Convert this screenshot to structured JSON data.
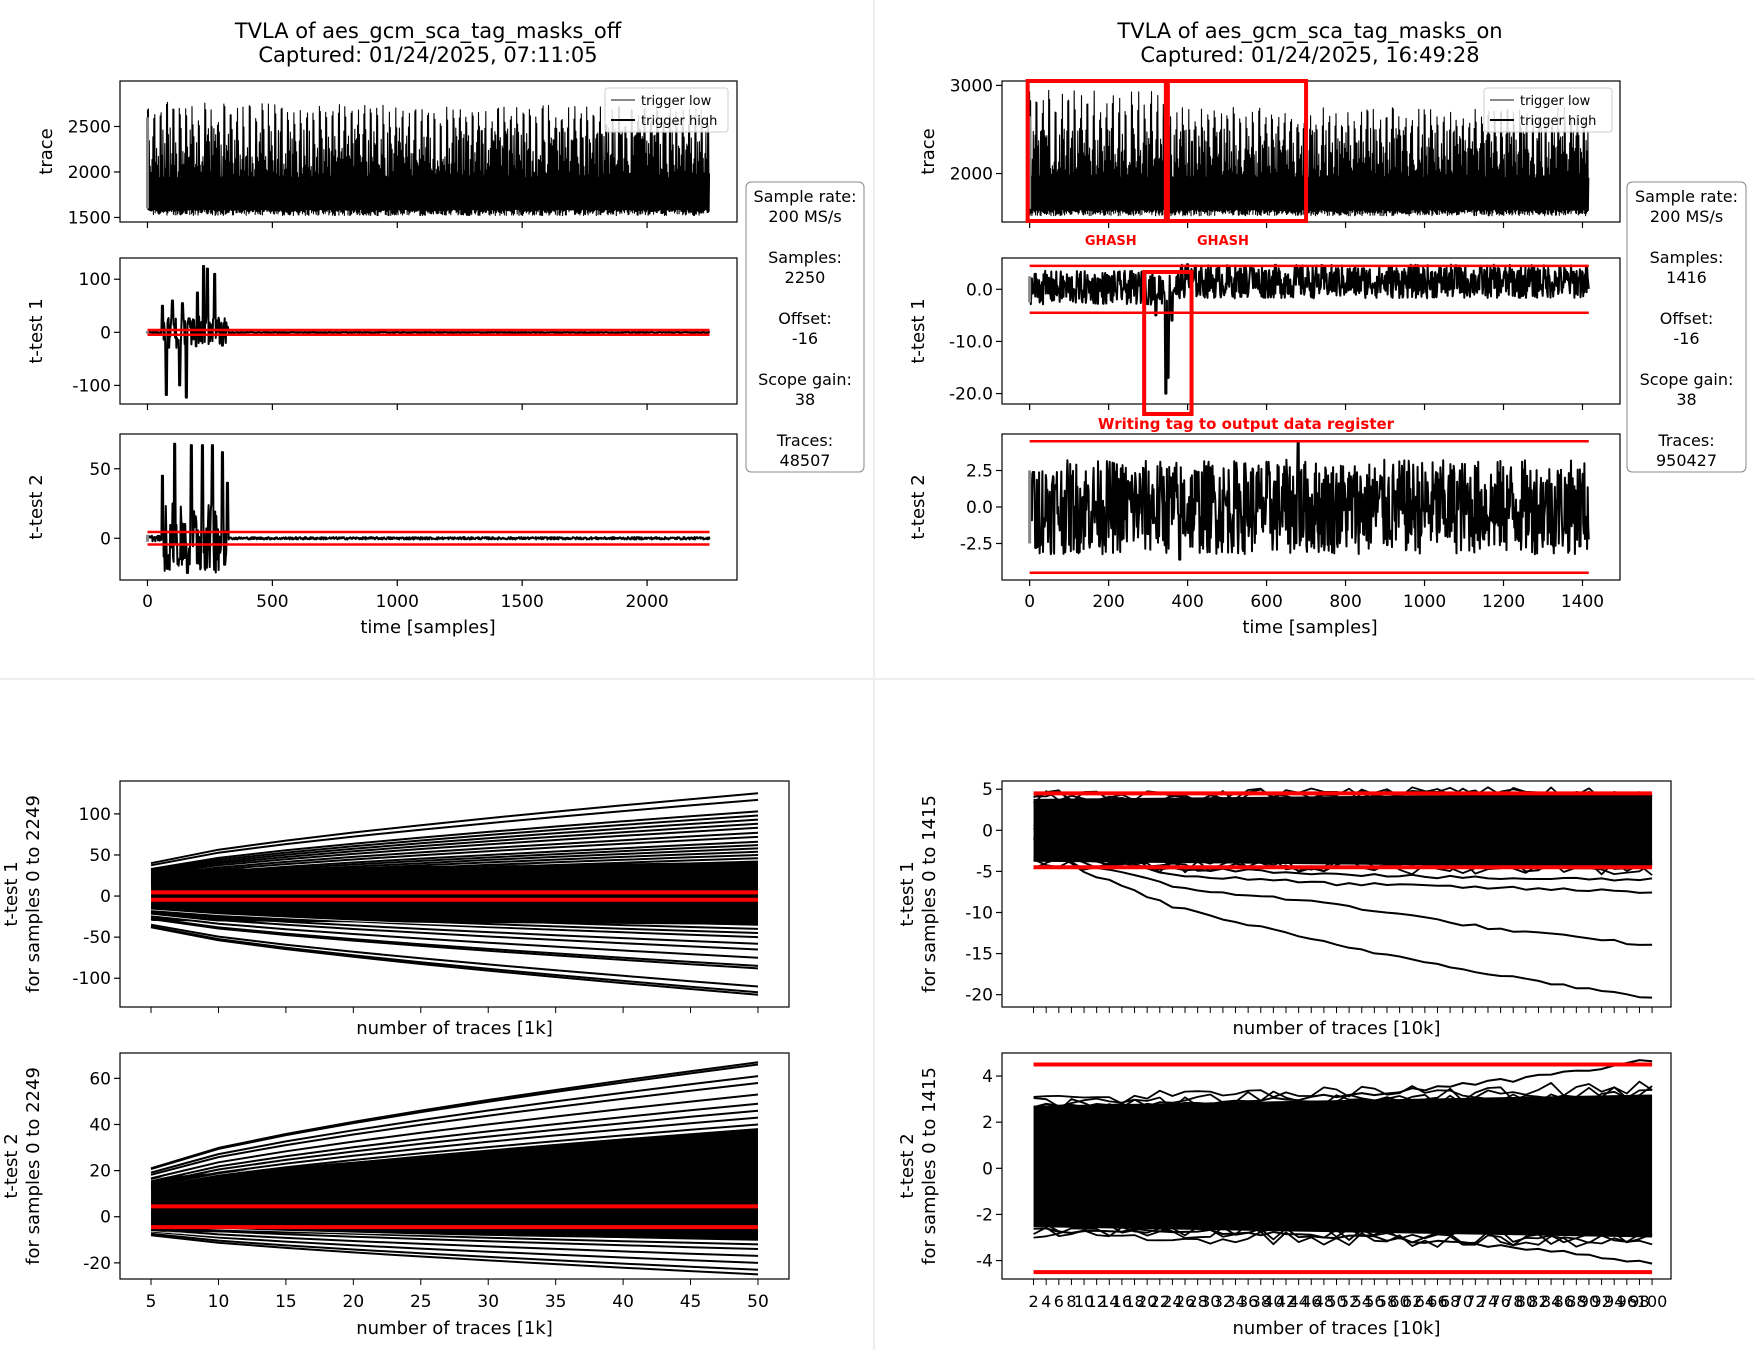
{
  "chart_data": [
    {
      "type": "line",
      "title": "TVLA of aes_gcm_sca_tag_masks_off",
      "subtitle": "Captured: 01/24/2025, 07:11:05",
      "xlabel": "time [samples]",
      "xlim": [
        -110,
        2360
      ],
      "xticks": [
        0,
        500,
        1000,
        1500,
        2000
      ],
      "legend": {
        "placement": "top-right",
        "entries": [
          "trigger low",
          "trigger high"
        ]
      },
      "info_box": [
        {
          "label": "Sample rate:",
          "value": "200 MS/s"
        },
        {
          "label": "Samples:",
          "value": "2250"
        },
        {
          "label": "Offset:",
          "value": "-16"
        },
        {
          "label": "Scope gain:",
          "value": "38"
        },
        {
          "label": "Traces:",
          "value": "48507"
        }
      ],
      "panels": [
        {
          "ylabel": "trace",
          "ylim": [
            1450,
            3000
          ],
          "yticks": [
            1500,
            2000,
            2500
          ],
          "series": [
            {
              "name": "trace",
              "n_samples": 2250,
              "range": [
                1520,
                2900
              ]
            }
          ]
        },
        {
          "ylabel": "t-test 1",
          "ylim": [
            -135,
            140
          ],
          "yticks": [
            -100,
            0,
            100
          ],
          "thresholds": [
            -4.5,
            4.5
          ],
          "peaks": [
            [
              60,
              50
            ],
            [
              75,
              -118
            ],
            [
              100,
              60
            ],
            [
              130,
              -100
            ],
            [
              140,
              55
            ],
            [
              155,
              -123
            ],
            [
              200,
              75
            ],
            [
              225,
              125
            ],
            [
              240,
              120
            ],
            [
              270,
              110
            ],
            [
              300,
              -25
            ],
            [
              320,
              10
            ]
          ]
        },
        {
          "ylabel": "t-test 2",
          "ylim": [
            -30,
            75
          ],
          "yticks": [
            0,
            50
          ],
          "thresholds": [
            -4.5,
            4.5
          ],
          "peaks": [
            [
              60,
              45
            ],
            [
              80,
              -22
            ],
            [
              110,
              68
            ],
            [
              130,
              -15
            ],
            [
              160,
              -25
            ],
            [
              175,
              67
            ],
            [
              220,
              67
            ],
            [
              260,
              67
            ],
            [
              300,
              62
            ],
            [
              320,
              40
            ]
          ]
        }
      ]
    },
    {
      "type": "line",
      "title": "TVLA of aes_gcm_sca_tag_masks_on",
      "subtitle": "Captured: 01/24/2025, 16:49:28",
      "xlabel": "time [samples]",
      "xlim": [
        -70,
        1495
      ],
      "xticks": [
        0,
        200,
        400,
        600,
        800,
        1000,
        1200,
        1400
      ],
      "legend": {
        "placement": "top-right",
        "entries": [
          "trigger low",
          "trigger high"
        ]
      },
      "info_box": [
        {
          "label": "Sample rate:",
          "value": "200 MS/s"
        },
        {
          "label": "Samples:",
          "value": "1416"
        },
        {
          "label": "Offset:",
          "value": "-16"
        },
        {
          "label": "Scope gain:",
          "value": "38"
        },
        {
          "label": "Traces:",
          "value": "950427"
        }
      ],
      "annotations": [
        {
          "text": "GHASH",
          "x_range": [
            0,
            350
          ]
        },
        {
          "text": "GHASH",
          "x_range": [
            350,
            700
          ]
        },
        {
          "text": "Writing tag to output data register",
          "x_range": [
            290,
            410
          ]
        }
      ],
      "panels": [
        {
          "ylabel": "trace",
          "ylim": [
            1450,
            3050
          ],
          "yticks": [
            2000,
            3000
          ],
          "series": [
            {
              "name": "trace",
              "n_samples": 1416,
              "range": [
                1520,
                2950
              ]
            }
          ]
        },
        {
          "ylabel": "t-test 1",
          "ylim": [
            -22,
            6
          ],
          "yticks": [
            -20,
            -10,
            0
          ],
          "thresholds": [
            -4.5,
            4.5
          ],
          "peaks": [
            [
              320,
              -5
            ],
            [
              345,
              -20
            ],
            [
              350,
              -17
            ],
            [
              360,
              -6
            ],
            [
              400,
              4.8
            ],
            [
              560,
              4.5
            ],
            [
              1080,
              4.6
            ]
          ]
        },
        {
          "ylabel": "t-test 2",
          "ylim": [
            -5,
            5
          ],
          "yticks": [
            -2.5,
            0.0,
            2.5
          ],
          "thresholds": [
            -4.5,
            4.5
          ],
          "peaks": [
            [
              10,
              2.4
            ],
            [
              15,
              -2.8
            ],
            [
              380,
              -3.6
            ],
            [
              680,
              4.4
            ]
          ]
        }
      ]
    },
    {
      "type": "line",
      "xlabel": "number of traces [1k]",
      "x": [
        5,
        10,
        15,
        20,
        25,
        30,
        35,
        40,
        45,
        50
      ],
      "xlim": [
        2.7,
        52.3
      ],
      "panels": [
        {
          "ylabel": "t-test 1\nfor samples 0 to 2249",
          "ylim": [
            -135,
            140
          ],
          "yticks": [
            -100,
            -50,
            0,
            50,
            100
          ],
          "thresholds": [
            -4.5,
            4.5
          ],
          "show_xticklabels": false,
          "series_upper_end": [
            125,
            117,
            103,
            98,
            93,
            88,
            83,
            77,
            72,
            66,
            62,
            58,
            54,
            50,
            46,
            42
          ],
          "series_lower_end": [
            -120,
            -117,
            -110,
            -88,
            -85,
            -75,
            -65,
            -58,
            -50,
            -45,
            -40,
            -35
          ],
          "spread_start": [
            -38,
            40
          ]
        },
        {
          "ylabel": "t-test 2\nfor samples 0 to 2249",
          "ylim": [
            -27,
            71
          ],
          "yticks": [
            -20,
            0,
            20,
            40,
            60
          ],
          "thresholds": [
            -4.5,
            4.5
          ],
          "show_xticklabels": true,
          "series_upper_end": [
            67,
            66,
            61,
            58,
            53,
            49,
            46,
            43,
            40,
            38
          ],
          "series_lower_end": [
            -25,
            -23,
            -20,
            -17,
            -14,
            -12,
            -10
          ],
          "spread_start": [
            -8,
            21
          ]
        }
      ]
    },
    {
      "type": "line",
      "xlabel": "number of traces [10k]",
      "x_range": [
        2,
        100
      ],
      "xlim": [
        -3,
        103
      ],
      "panels": [
        {
          "ylabel": "t-test 1\nfor samples 0 to 1415",
          "ylim": [
            -21.5,
            6
          ],
          "yticks": [
            -20,
            -15,
            -10,
            -5,
            0,
            5
          ],
          "thresholds": [
            -4.5,
            4.5
          ],
          "show_xticklabels": false,
          "series": [
            {
              "name": "",
              "values_at": [
                [
                  2,
                  0.5
                ],
                [
                  10,
                  -2.5
                ],
                [
                  20,
                  -4.5
                ],
                [
                  40,
                  -5.0
                ],
                [
                  70,
                  -5.8
                ],
                [
                  100,
                  -6.0
                ]
              ]
            },
            {
              "name": "",
              "values_at": [
                [
                  2,
                  0.3
                ],
                [
                  10,
                  -3
                ],
                [
                  25,
                  -5.5
                ],
                [
                  50,
                  -6.5
                ],
                [
                  75,
                  -7.0
                ],
                [
                  100,
                  -7.5
                ]
              ]
            },
            {
              "name": "",
              "values_at": [
                [
                  2,
                  -1
                ],
                [
                  10,
                  -4
                ],
                [
                  25,
                  -7
                ],
                [
                  50,
                  -9
                ],
                [
                  75,
                  -12
                ],
                [
                  100,
                  -14
                ]
              ]
            },
            {
              "name": "",
              "values_at": [
                [
                  2,
                  -1
                ],
                [
                  10,
                  -5
                ],
                [
                  25,
                  -9.5
                ],
                [
                  50,
                  -14
                ],
                [
                  75,
                  -17.5
                ],
                [
                  100,
                  -20.5
                ]
              ]
            }
          ],
          "band": [
            -4.5,
            4.5
          ]
        },
        {
          "ylabel": "t-test 2\nfor samples 0 to 1415",
          "ylim": [
            -4.8,
            5
          ],
          "yticks": [
            -4,
            -2,
            0,
            2,
            4
          ],
          "thresholds": [
            -4.5,
            4.5
          ],
          "show_xticklabels": true,
          "band": [
            -3.0,
            3.2
          ],
          "max_series_end": 4.7,
          "min_series_end": -4.1
        }
      ]
    }
  ]
}
